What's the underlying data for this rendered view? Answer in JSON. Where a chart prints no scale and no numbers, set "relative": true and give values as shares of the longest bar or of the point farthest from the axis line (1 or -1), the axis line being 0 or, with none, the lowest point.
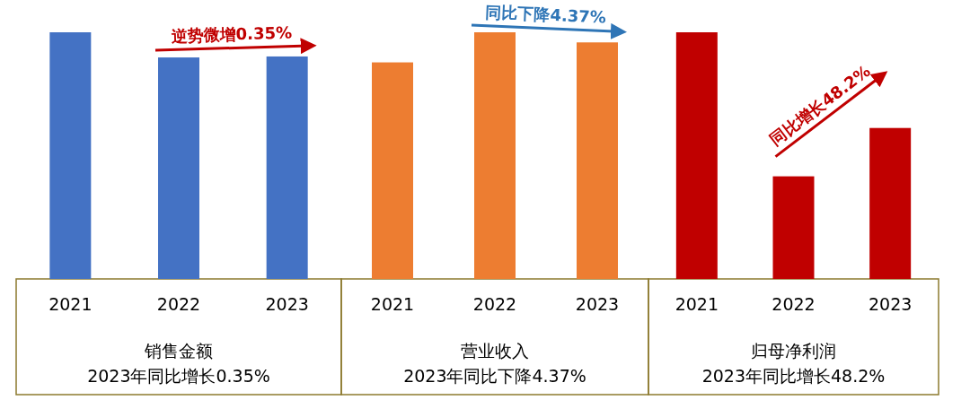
{
  "chart_data": [
    {
      "type": "bar",
      "relative": true,
      "categories": [
        "2021",
        "2022",
        "2023"
      ],
      "values": [
        1,
        0.898,
        0.902
      ],
      "colors": [
        "#4472c4",
        "#4472c4",
        "#4472c4"
      ],
      "title": "销售金额",
      "subtitle": "2023年同比增长0.35%",
      "annotations": [
        "逆势微增0.35%"
      ]
    },
    {
      "type": "bar",
      "relative": true,
      "categories": [
        "2021",
        "2022",
        "2023"
      ],
      "values": [
        0.878,
        1,
        0.959
      ],
      "colors": [
        "#ed7d31",
        "#ed7d31",
        "#ed7d31"
      ],
      "title": "营业收入",
      "subtitle": "2023年同比下降4.37%",
      "annotations": [
        "同比下降4.37%"
      ]
    },
    {
      "type": "bar",
      "relative": true,
      "categories": [
        "2021",
        "2022",
        "2023"
      ],
      "values": [
        1,
        0.416,
        0.612
      ],
      "colors": [
        "#c00000",
        "#c00000",
        "#c00000"
      ],
      "title": "归母净利润",
      "subtitle": "2023年同比增长48.2%",
      "annotations": [
        "同比增长48.2%"
      ]
    }
  ]
}
